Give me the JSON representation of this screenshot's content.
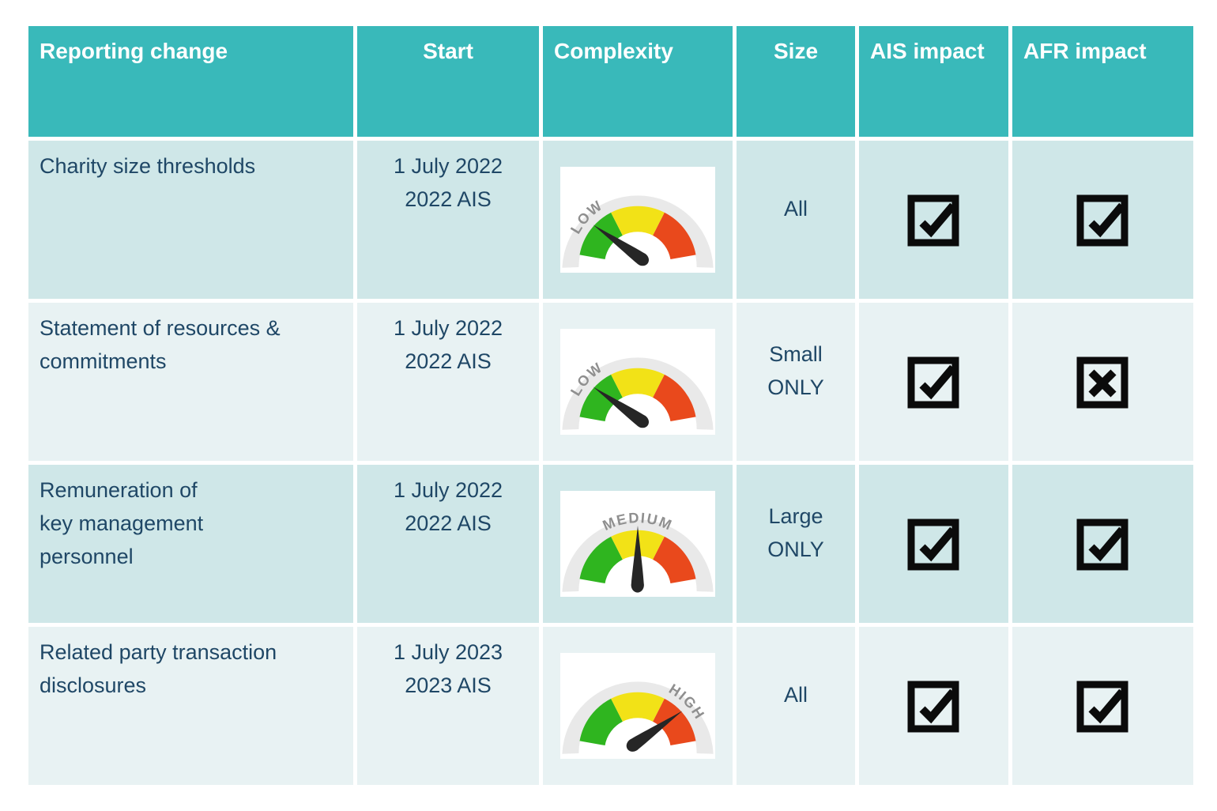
{
  "colors": {
    "header_bg": "#39b9ba",
    "row_alt_dark": "#cfe7e8",
    "row_alt_light": "#e8f2f3",
    "text_navy": "#1f4766",
    "checkbox_ink": "#0b0b0b",
    "gauge_green": "#2fb51f",
    "gauge_yellow": "#f2e217",
    "gauge_red": "#e9491c",
    "gauge_band": "#e9e9e9",
    "gauge_label_gray": "#8f8f8f"
  },
  "table": {
    "headers": {
      "change": "Reporting change",
      "start": "Start",
      "complexity": "Complexity",
      "size": "Size",
      "ais": "AIS impact",
      "afr": "AFR impact"
    },
    "rows": [
      {
        "change": [
          "Charity size thresholds"
        ],
        "start": [
          "1 July 2022",
          "2022 AIS"
        ],
        "complexity": "LOW",
        "size": [
          "All"
        ],
        "ais_impact": "checked",
        "afr_impact": "checked"
      },
      {
        "change": [
          "Statement of resources &",
          "commitments"
        ],
        "start": [
          "1 July 2022",
          "2022 AIS"
        ],
        "complexity": "LOW",
        "size": [
          "Small",
          "ONLY"
        ],
        "ais_impact": "checked",
        "afr_impact": "crossed"
      },
      {
        "change": [
          "Remuneration of",
          "key management",
          "personnel"
        ],
        "start": [
          "1 July 2022",
          "2022 AIS"
        ],
        "complexity": "MEDIUM",
        "size": [
          "Large",
          "ONLY"
        ],
        "ais_impact": "checked",
        "afr_impact": "checked"
      },
      {
        "change": [
          "Related party transaction",
          "disclosures"
        ],
        "start": [
          "1 July 2023",
          "2023 AIS"
        ],
        "complexity": "HIGH",
        "size": [
          "All"
        ],
        "ais_impact": "checked",
        "afr_impact": "checked"
      }
    ]
  }
}
